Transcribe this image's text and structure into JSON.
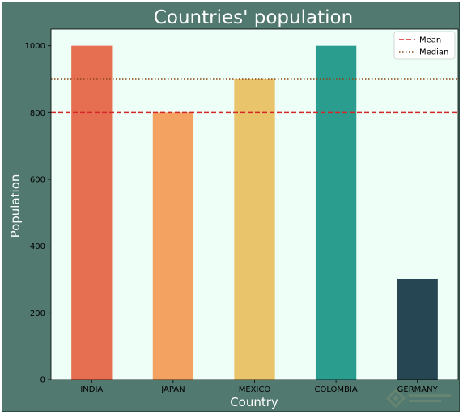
{
  "chart_data": {
    "type": "bar",
    "title": "Countries' population",
    "xlabel": "Country",
    "ylabel": "Population",
    "categories": [
      "INDIA",
      "JAPAN",
      "MEXICO",
      "COLOMBIA",
      "GERMANY"
    ],
    "values": [
      1000,
      800,
      900,
      1000,
      300
    ],
    "bar_colors": [
      "#e76f51",
      "#f4a261",
      "#e9c46a",
      "#2a9d8f",
      "#264653"
    ],
    "ylim": [
      0,
      1050
    ],
    "yticks": [
      0,
      200,
      400,
      600,
      800,
      1000
    ],
    "grid": false,
    "plot_background": "#edfff6",
    "figure_background": "#51796f",
    "reference_lines": [
      {
        "name": "Mean",
        "value": 800,
        "style": "dashed",
        "color": "#d62728"
      },
      {
        "name": "Median",
        "value": 900,
        "style": "dotted",
        "color": "#8b4513"
      }
    ],
    "legend_placement": "top-right"
  }
}
